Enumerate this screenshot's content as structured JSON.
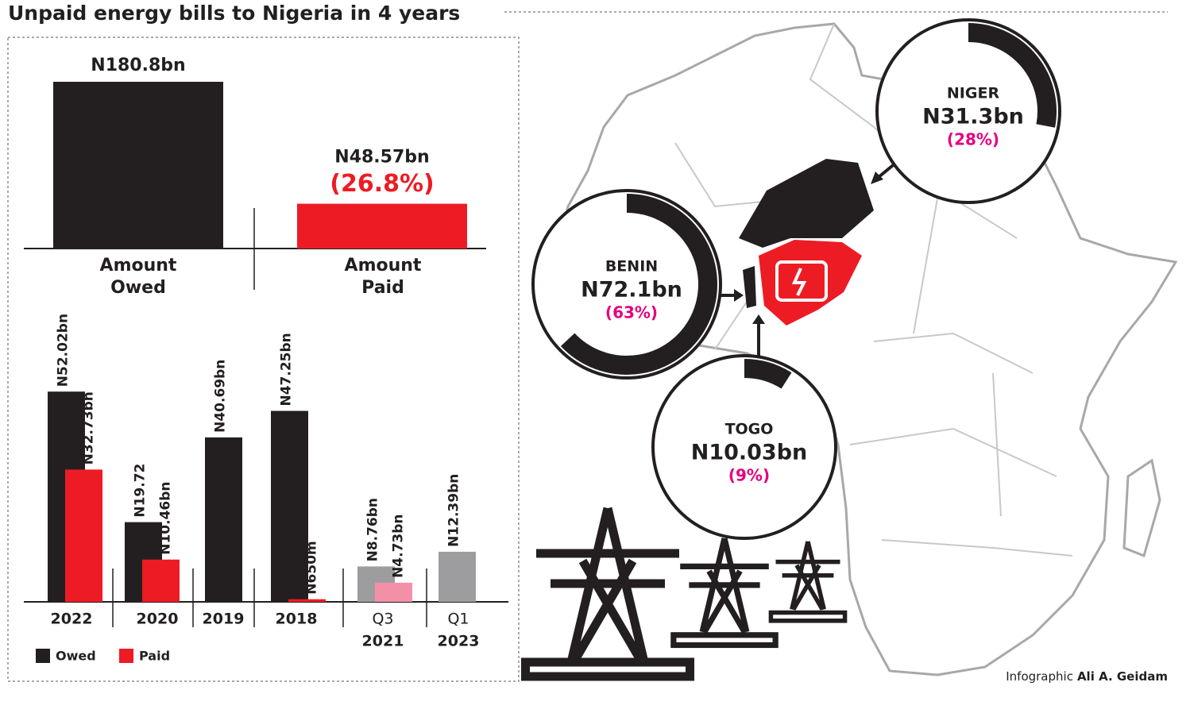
{
  "title": "Unpaid energy bills to Nigeria in 4 years",
  "credit": {
    "prefix": "Infographic",
    "name": "Ali A. Geidam"
  },
  "chart_data": [
    {
      "type": "bar",
      "categories": [
        [
          "Amount",
          "Owed"
        ],
        [
          "Amount",
          "Paid"
        ]
      ],
      "values": [
        180.8,
        48.57
      ],
      "value_labels": [
        "N180.8bn",
        "N48.57bn"
      ],
      "colors": [
        "#231f20",
        "#ed1c24"
      ],
      "annotations": [
        null,
        "(26.8%)"
      ],
      "annotation_color": "#ed1c24"
    },
    {
      "type": "grouped_bar",
      "categories": [
        [
          "2022"
        ],
        [
          "2020"
        ],
        [
          "2019"
        ],
        [
          "2018"
        ],
        [
          "Q3",
          "2021"
        ],
        [
          "Q1",
          "2023"
        ]
      ],
      "series": [
        {
          "name": "Owed",
          "color": "#231f20",
          "colors": [
            "#231f20",
            "#231f20",
            "#231f20",
            "#231f20",
            "#9d9d9f",
            "#9d9d9f"
          ],
          "values": [
            52.02,
            19.72,
            40.69,
            47.25,
            8.76,
            12.39
          ],
          "value_labels": [
            "N52.02bn",
            "N19.72",
            "N40.69bn",
            "N47.25bn",
            "N8.76bn",
            "N12.39bn"
          ]
        },
        {
          "name": "Paid",
          "color": "#ed1c24",
          "colors": [
            "#ed1c24",
            "#ed1c24",
            "#ed1c24",
            "#ed1c24",
            "#f390a8",
            "#f390a8"
          ],
          "values": [
            32.73,
            10.46,
            null,
            0.65,
            4.73,
            null
          ],
          "value_labels": [
            "N32.73bn",
            "N10.46bn",
            null,
            "N650m",
            "N4.73bn",
            null
          ]
        }
      ]
    },
    {
      "type": "donut",
      "categories": [
        "NIGER",
        "BENIN",
        "TOGO"
      ],
      "values": [
        31.3,
        72.1,
        10.03
      ],
      "value_labels": [
        "N31.3bn",
        "N72.1bn",
        "N10.03bn"
      ],
      "shares": [
        28,
        63,
        9
      ],
      "share_labels": [
        "(28%)",
        "(63%)",
        "(9%)"
      ],
      "color": "#231f20",
      "share_color": "#e6007e"
    }
  ]
}
